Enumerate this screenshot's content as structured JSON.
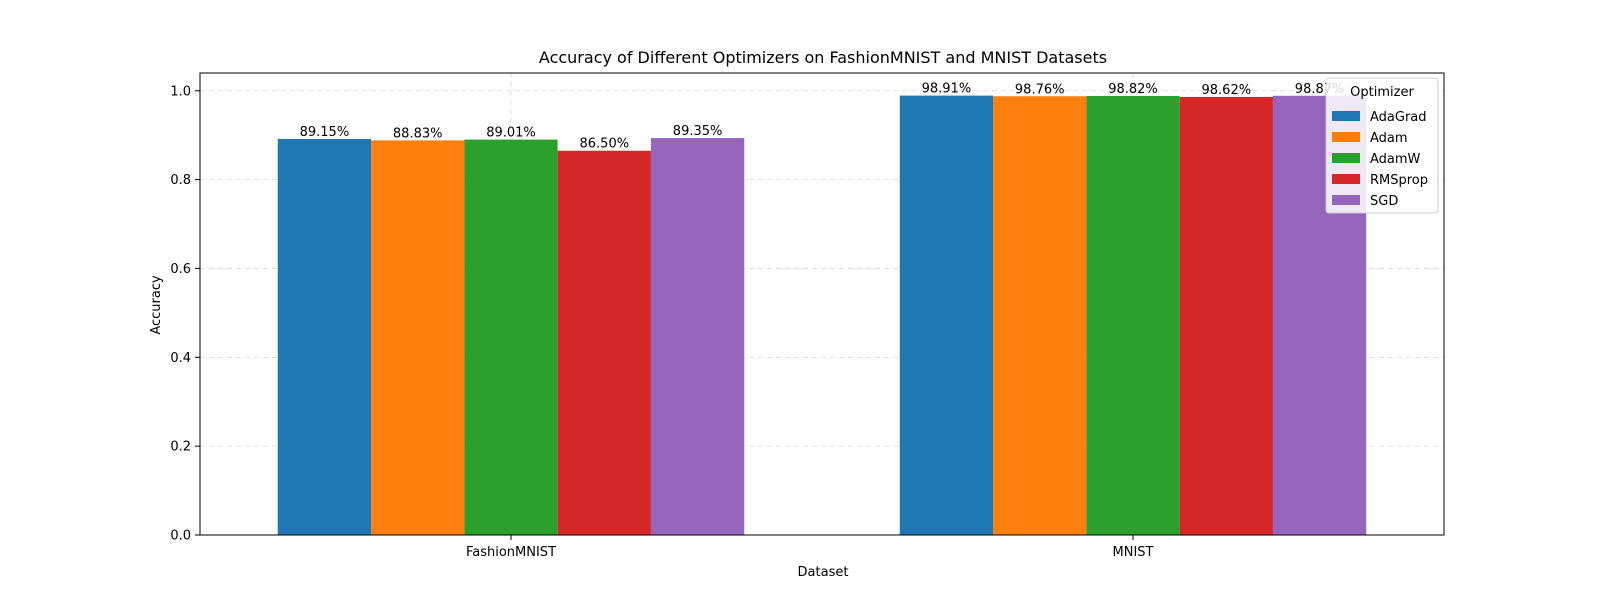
{
  "chart_data": {
    "type": "bar",
    "title": "Accuracy of Different Optimizers on FashionMNIST and MNIST Datasets",
    "xlabel": "Dataset",
    "ylabel": "Accuracy",
    "categories": [
      "FashionMNIST",
      "MNIST"
    ],
    "ylim": [
      0,
      1.04
    ],
    "yticks": [
      "0.0",
      "0.2",
      "0.4",
      "0.6",
      "0.8",
      "1.0"
    ],
    "grid": true,
    "legend_title": "Optimizer",
    "legend_position": "top-right",
    "series": [
      {
        "name": "AdaGrad",
        "color": "#1f77b4",
        "values": [
          0.8915,
          0.9891
        ],
        "labels": [
          "89.15%",
          "98.91%"
        ]
      },
      {
        "name": "Adam",
        "color": "#ff7f0e",
        "values": [
          0.8883,
          0.9876
        ],
        "labels": [
          "88.83%",
          "98.76%"
        ]
      },
      {
        "name": "AdamW",
        "color": "#2ca02c",
        "values": [
          0.8901,
          0.9882
        ],
        "labels": [
          "89.01%",
          "98.82%"
        ]
      },
      {
        "name": "RMSprop",
        "color": "#d62728",
        "values": [
          0.865,
          0.9862
        ],
        "labels": [
          "86.50%",
          "98.62%"
        ]
      },
      {
        "name": "SGD",
        "color": "#9467bd",
        "values": [
          0.8935,
          0.9887
        ],
        "labels": [
          "89.35%",
          "98.87%"
        ]
      }
    ]
  }
}
